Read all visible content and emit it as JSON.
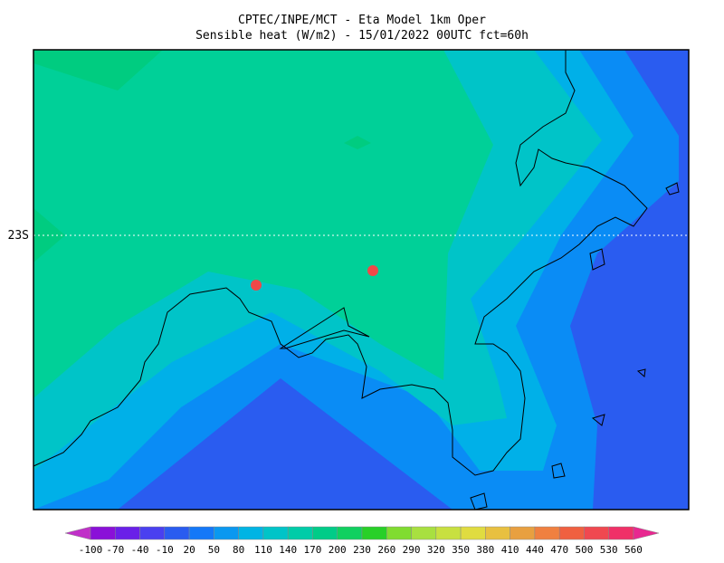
{
  "header": {
    "line1": "CPTEC/INPE/MCT -  Eta Model 1km Oper",
    "line2": "Sensible heat (W/m2) - 15/01/2022 00UTC fct=60h"
  },
  "map": {
    "lat_label": "23S"
  },
  "colorbar": {
    "labels": [
      -100,
      -70,
      -40,
      -10,
      20,
      50,
      80,
      110,
      140,
      170,
      200,
      230,
      260,
      290,
      320,
      350,
      380,
      410,
      440,
      470,
      500,
      530,
      560
    ],
    "colors": [
      "#c030c8",
      "#8a10d8",
      "#6a20e8",
      "#4a40f0",
      "#2a5cf0",
      "#1478f8",
      "#0a98f0",
      "#00b4e4",
      "#00c4c8",
      "#00cca8",
      "#00cc88",
      "#10d060",
      "#28d028",
      "#80dc30",
      "#a8e040",
      "#c8e040",
      "#e0dc40",
      "#e8c040",
      "#e8a040",
      "#f08040",
      "#f06040",
      "#f04850",
      "#f03068",
      "#e82890"
    ]
  }
}
